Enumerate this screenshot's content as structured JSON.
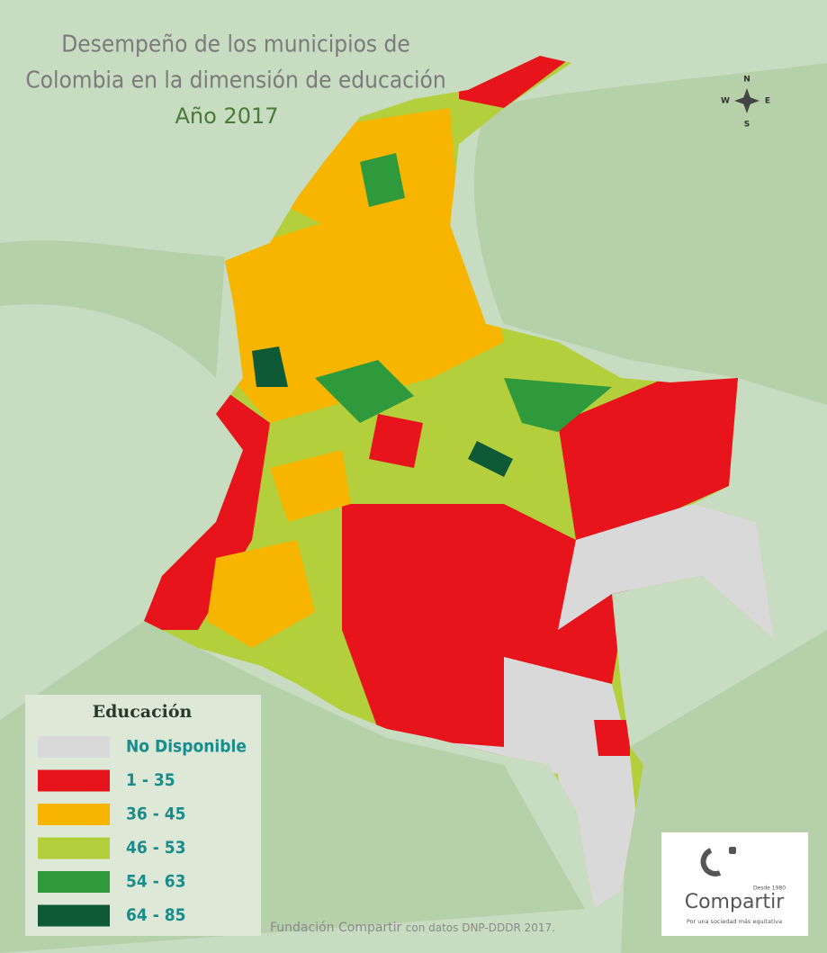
{
  "title_lines": [
    "Desempeño de los municipios de",
    "Colombia en la dimensión de educación"
  ],
  "year": "Año 2017",
  "compass": {
    "n": "N",
    "s": "S",
    "e": "E",
    "w": "W"
  },
  "legend": {
    "title": "Educación",
    "items": [
      {
        "label": "No Disponible",
        "color": "#d9d9d9"
      },
      {
        "label": "1 - 35",
        "color": "#e8141b"
      },
      {
        "label": "36 - 45",
        "color": "#f7b500"
      },
      {
        "label": "46 - 53",
        "color": "#b4cf3c"
      },
      {
        "label": "54 - 63",
        "color": "#2e9a3b"
      },
      {
        "label": "64 - 85",
        "color": "#0f5a36"
      }
    ]
  },
  "source": {
    "org": "Fundación Compartir",
    "rest": "con datos DNP-DDDR 2017."
  },
  "logo": {
    "since": "Desde 1980",
    "name": "Compartir",
    "tagline": "Por una sociedad más equitativa"
  }
}
